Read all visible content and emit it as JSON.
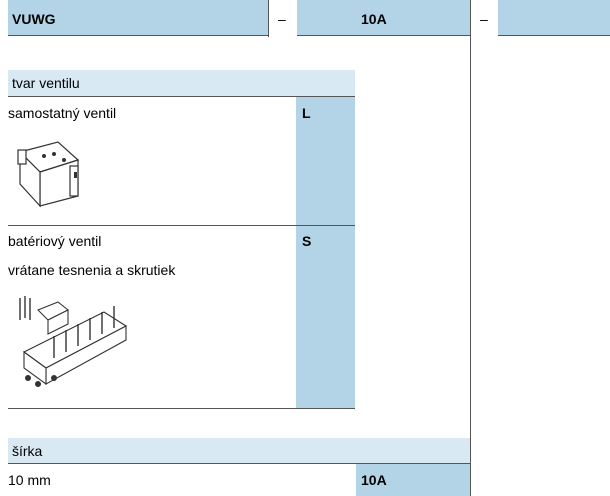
{
  "header": {
    "code": "VUWG",
    "separator_1": "–",
    "option": "10A",
    "separator_2": "–"
  },
  "sections": [
    {
      "title": "tvar ventilu",
      "rows": [
        {
          "label": [
            "samostatný ventil"
          ],
          "code": "L"
        },
        {
          "label": [
            "batériový ventil",
            "vrátane tesnenia a skrutiek"
          ],
          "code": "S"
        }
      ]
    },
    {
      "title": "šírka",
      "rows": [
        {
          "label": [
            "10 mm"
          ],
          "code": "10A"
        }
      ]
    }
  ]
}
